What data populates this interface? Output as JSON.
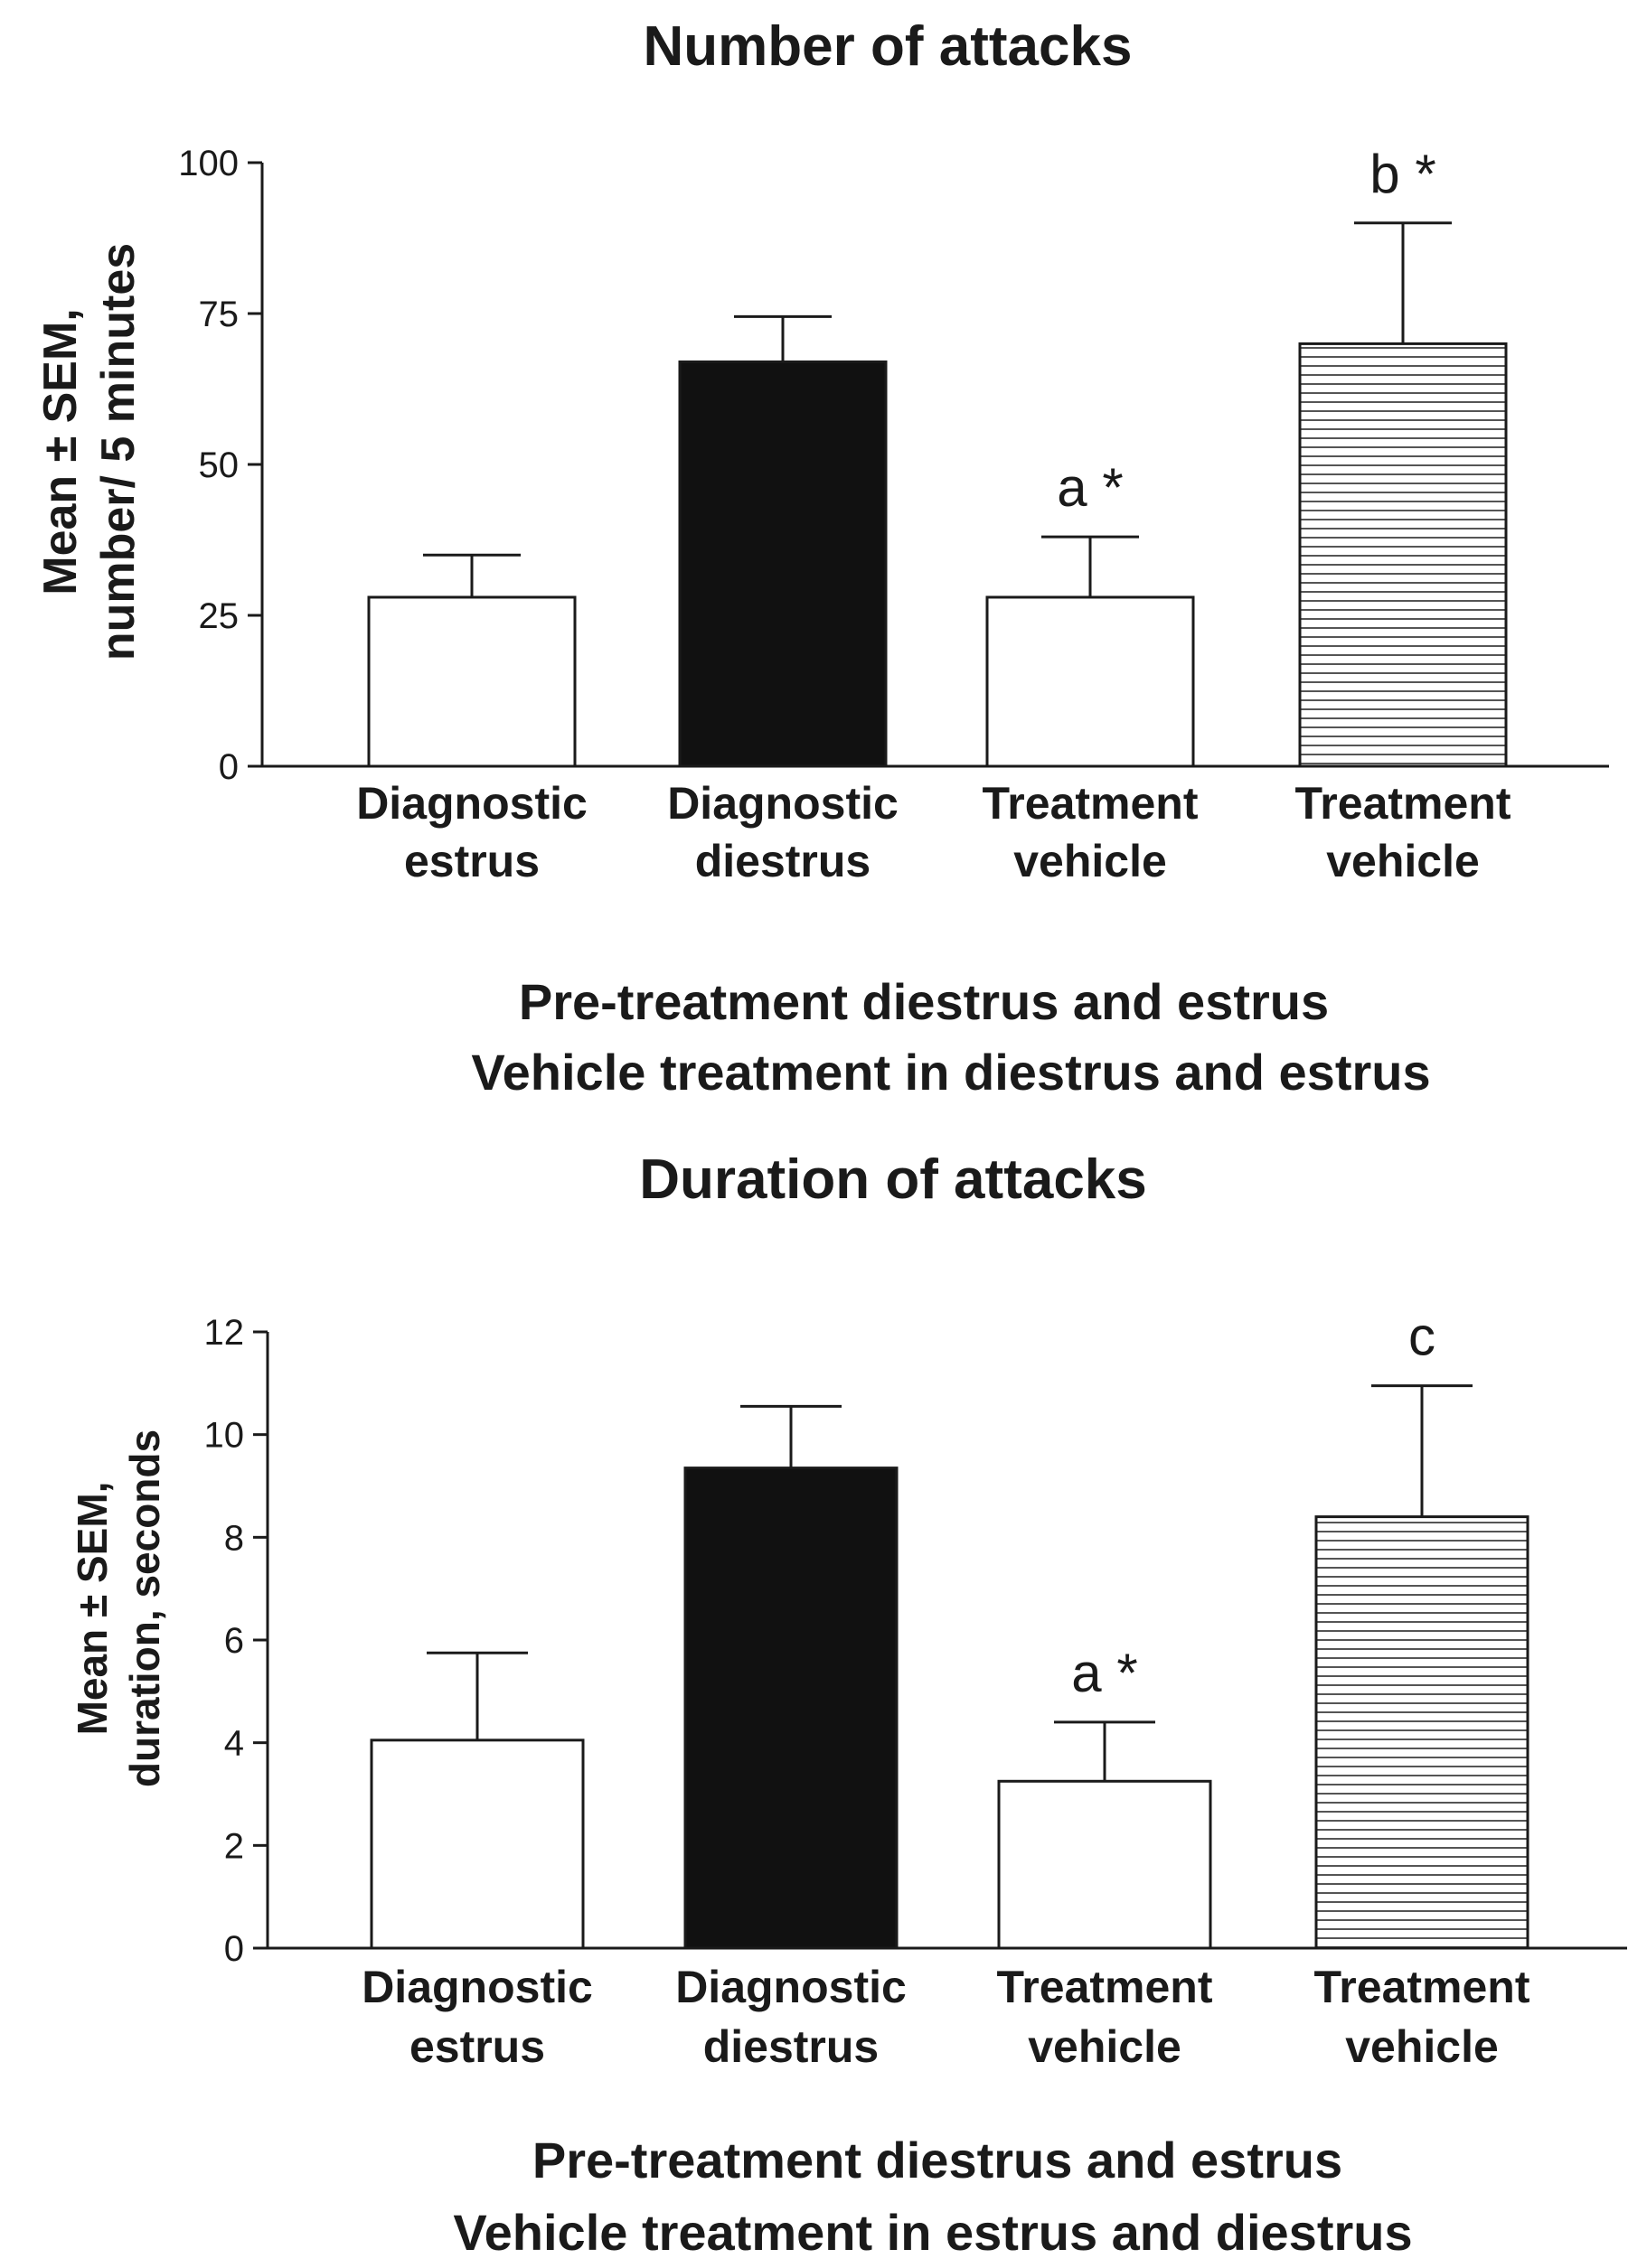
{
  "chart_data": [
    {
      "type": "bar",
      "title": "Number of attacks",
      "ylabel": "Mean ± SEM, number/ 5 minutes",
      "ylabel_lines": [
        "Mean ± SEM,",
        "number/ 5 minutes"
      ],
      "ylim": [
        0,
        100
      ],
      "yticks": [
        0,
        25,
        50,
        75,
        100
      ],
      "ytick_labels": [
        "0",
        "25",
        "50",
        "75",
        "100"
      ],
      "categories": [
        [
          "Diagnostic",
          "estrus"
        ],
        [
          "Diagnostic",
          "diestrus"
        ],
        [
          "Treatment",
          "vehicle"
        ],
        [
          "Treatment",
          "vehicle"
        ]
      ],
      "values": [
        28,
        67,
        28,
        70
      ],
      "errors": [
        7,
        7.5,
        10,
        20
      ],
      "fills": [
        "white",
        "black",
        "white",
        "hatched"
      ],
      "annotations": [
        "",
        "",
        "a *",
        "b *"
      ],
      "caption": [
        "Pre-treatment diestrus and estrus",
        "Vehicle treatment in diestrus and estrus"
      ]
    },
    {
      "type": "bar",
      "title": "Duration of attacks",
      "ylabel": "Mean ± SEM, duration, seconds",
      "ylabel_lines": [
        "Mean ± SEM,",
        "duration, seconds"
      ],
      "ylim": [
        0,
        12
      ],
      "yticks": [
        0,
        2,
        4,
        6,
        8,
        10,
        12
      ],
      "ytick_labels": [
        "0",
        "2",
        "4",
        "6",
        "8",
        "10",
        "12"
      ],
      "categories": [
        [
          "Diagnostic",
          "estrus"
        ],
        [
          "Diagnostic",
          "diestrus"
        ],
        [
          "Treatment",
          "vehicle"
        ],
        [
          "Treatment",
          "vehicle"
        ]
      ],
      "values": [
        4.05,
        9.35,
        3.25,
        8.4
      ],
      "errors": [
        1.7,
        1.2,
        1.15,
        2.55
      ],
      "fills": [
        "white",
        "black",
        "white",
        "hatched"
      ],
      "annotations": [
        "",
        "",
        "a *",
        "c"
      ],
      "caption": [
        "Pre-treatment diestrus and estrus",
        "Vehicle treatment in estrus and diestrus"
      ]
    }
  ],
  "colors": {
    "ink": "#1a1a1a",
    "bar_black": "#111111",
    "bar_white": "#ffffff",
    "hatch_line": "#555555"
  }
}
